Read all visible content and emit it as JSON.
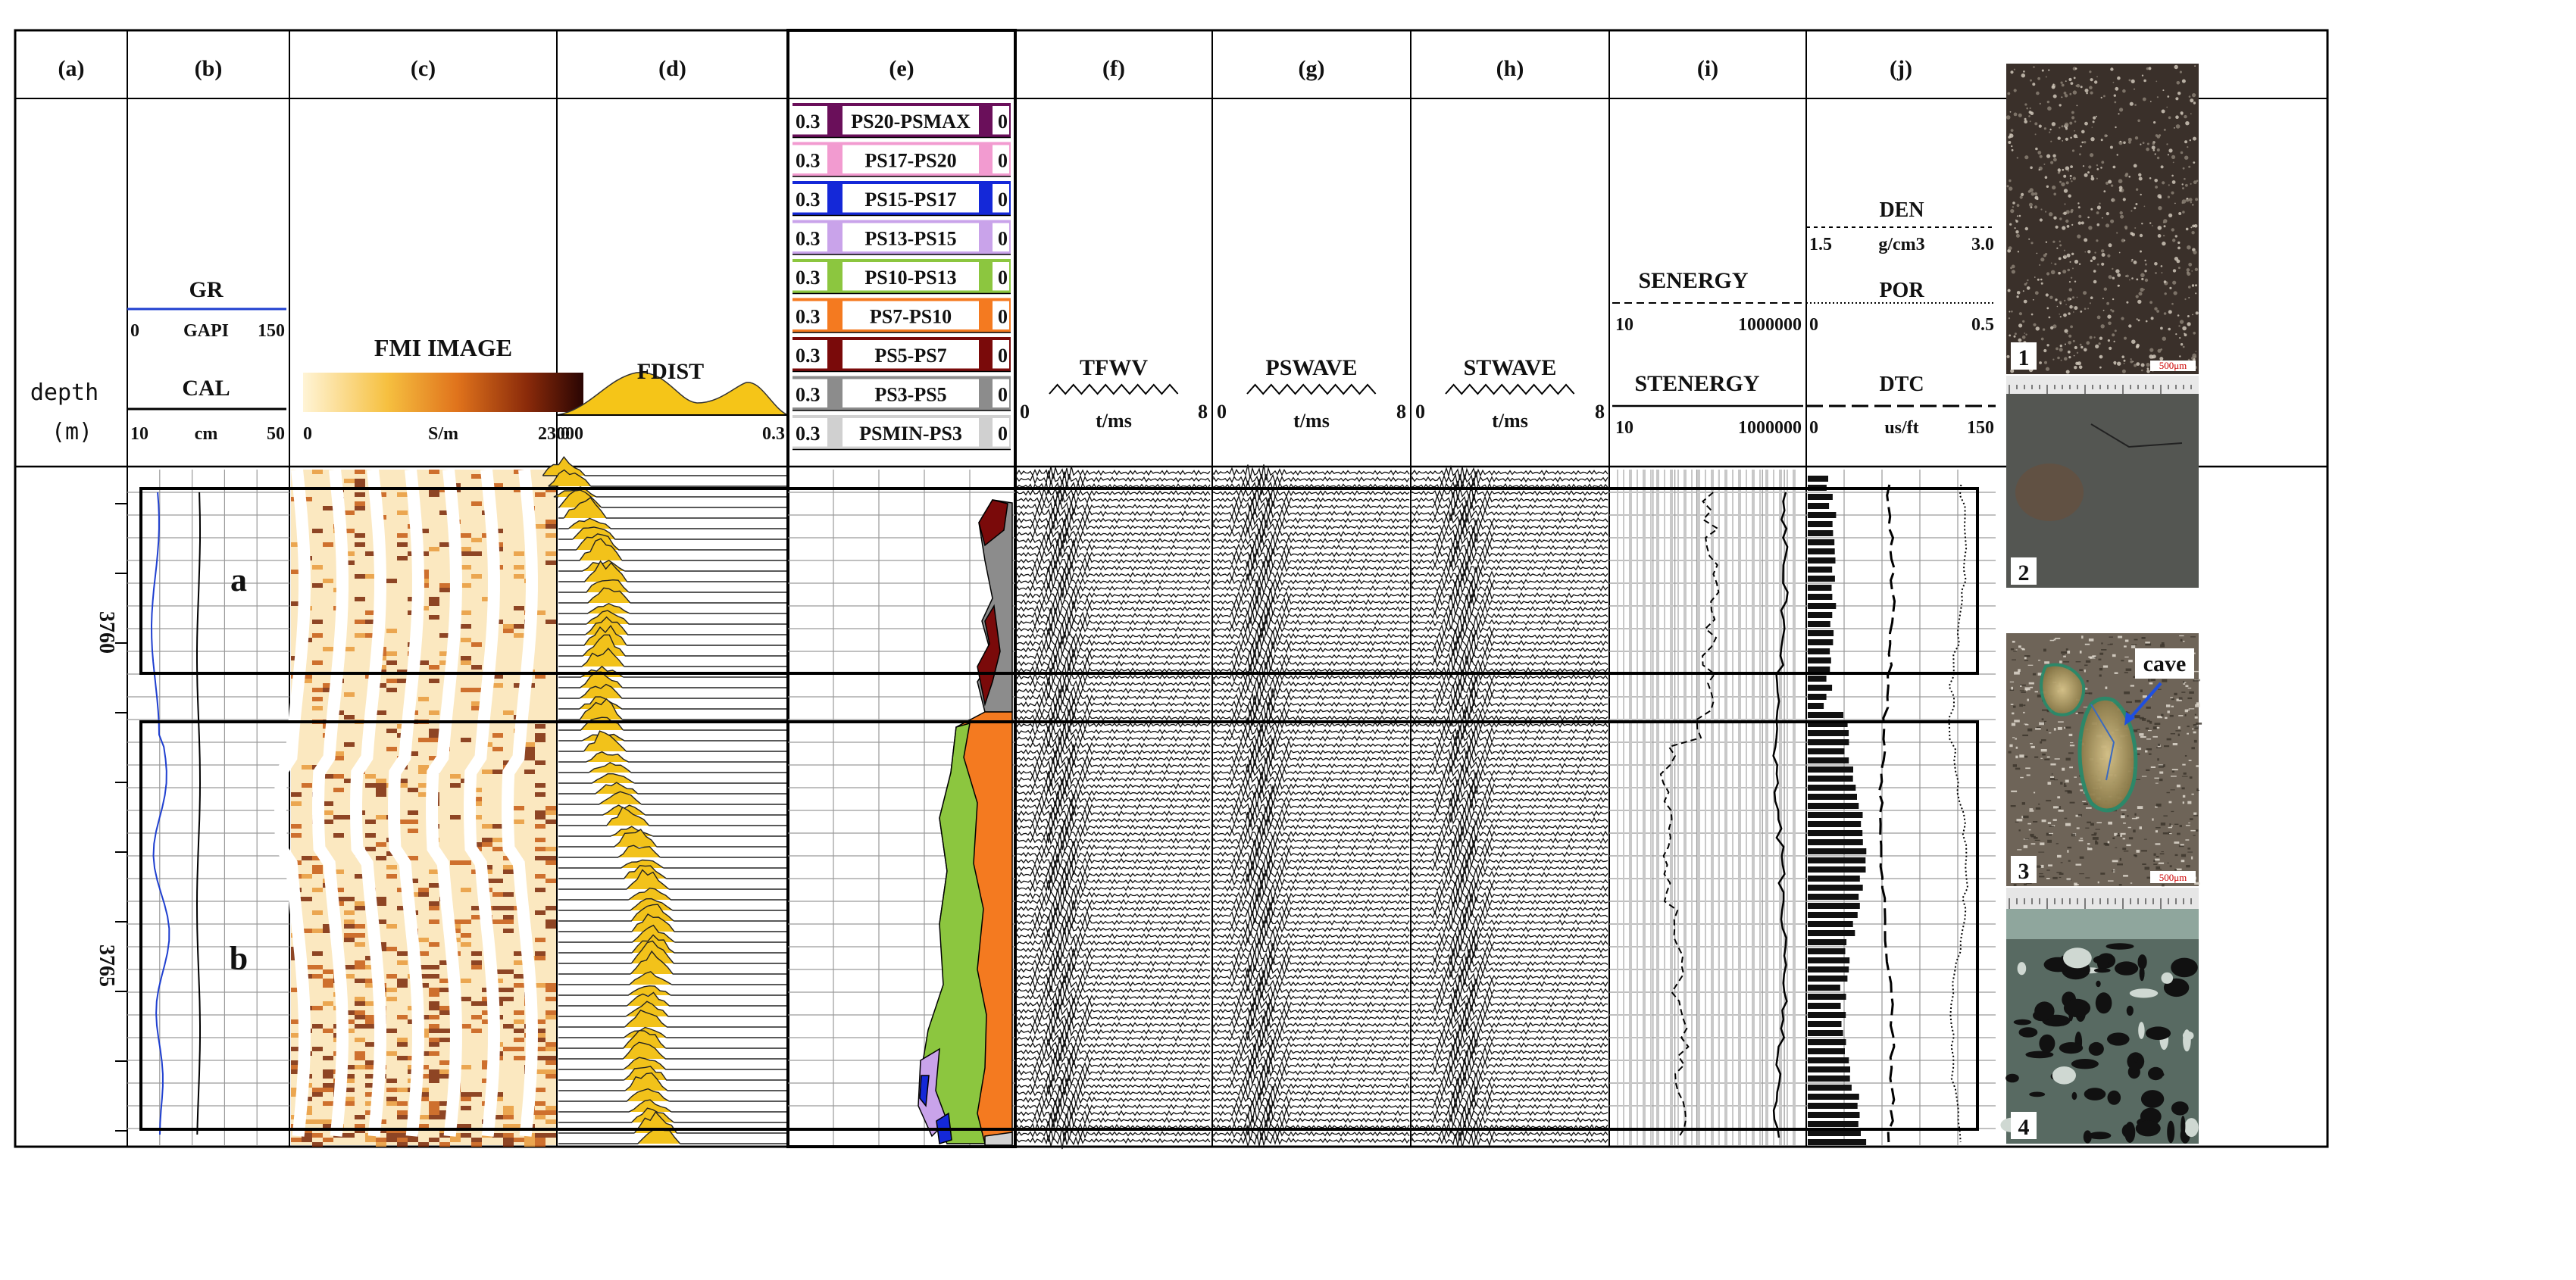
{
  "tracks": [
    {
      "label": "(a)",
      "name": "depth"
    },
    {
      "label": "(b)",
      "name": "gr-cal"
    },
    {
      "label": "(c)",
      "name": "fmi"
    },
    {
      "label": "(d)",
      "name": "fdist"
    },
    {
      "label": "(e)",
      "name": "pore-spectrum"
    },
    {
      "label": "(f)",
      "name": "tfwv"
    },
    {
      "label": "(g)",
      "name": "pswave"
    },
    {
      "label": "(h)",
      "name": "stwave"
    },
    {
      "label": "(i)",
      "name": "energy"
    },
    {
      "label": "(j)",
      "name": "den-por-dtc"
    }
  ],
  "depth_header": {
    "word": "depth",
    "unit": "(m)"
  },
  "depth_ticks": [
    "3760",
    "3765"
  ],
  "gr": {
    "name": "GR",
    "min": "0",
    "unit": "GAPI",
    "max": "150",
    "color": "#1f3fd0"
  },
  "cal": {
    "name": "CAL",
    "min": "10",
    "unit": "cm",
    "max": "50"
  },
  "zones": [
    {
      "label": "a"
    },
    {
      "label": "b"
    }
  ],
  "fmi": {
    "name": "FMI IMAGE",
    "min": "0",
    "unit": "S/m",
    "max": "23000"
  },
  "fdist": {
    "name": "FDIST",
    "min": "0",
    "max": "0.3"
  },
  "pore_bins": [
    {
      "name": "PS20-PSMAX",
      "left": "0.3",
      "right": "0",
      "color": "#6a0f5a"
    },
    {
      "name": "PS17-PS20",
      "left": "0.3",
      "right": "0",
      "color": "#f29bd0"
    },
    {
      "name": "PS15-PS17",
      "left": "0.3",
      "right": "0",
      "color": "#1428d8"
    },
    {
      "name": "PS13-PS15",
      "left": "0.3",
      "right": "0",
      "color": "#c9a3ea"
    },
    {
      "name": "PS10-PS13",
      "left": "0.3",
      "right": "0",
      "color": "#8cc63f"
    },
    {
      "name": "PS7-PS10",
      "left": "0.3",
      "right": "0",
      "color": "#f47a20"
    },
    {
      "name": "PS5-PS7",
      "left": "0.3",
      "right": "0",
      "color": "#7a0a0a"
    },
    {
      "name": "PS3-PS5",
      "left": "0.3",
      "right": "0",
      "color": "#8c8c8c"
    },
    {
      "name": "PSMIN-PS3",
      "left": "0.3",
      "right": "0",
      "color": "#d0d0d0"
    }
  ],
  "tfwv": {
    "name": "TFWV",
    "min": "0",
    "unit": "t/ms",
    "max": "8"
  },
  "pswave": {
    "name": "PSWAVE",
    "min": "0",
    "unit": "t/ms",
    "max": "8"
  },
  "stwave": {
    "name": "STWAVE",
    "min": "0",
    "unit": "t/ms",
    "max": "8"
  },
  "senergy": {
    "name": "SENERGY",
    "min": "10",
    "max": "1000000"
  },
  "stenergy": {
    "name": "STENERGY",
    "min": "10",
    "max": "1000000"
  },
  "den": {
    "name": "DEN",
    "min": "1.5",
    "unit": "g/cm3",
    "max": "3.0"
  },
  "por": {
    "name": "POR",
    "min": "0",
    "max": "0.5"
  },
  "dtc": {
    "name": "DTC",
    "min": "0",
    "unit": "us/ft",
    "max": "150"
  },
  "photos": [
    {
      "num": "1",
      "scale": "500μm"
    },
    {
      "num": "2"
    },
    {
      "num": "3",
      "scale": "500μm",
      "callout": "cave"
    },
    {
      "num": "4"
    }
  ]
}
